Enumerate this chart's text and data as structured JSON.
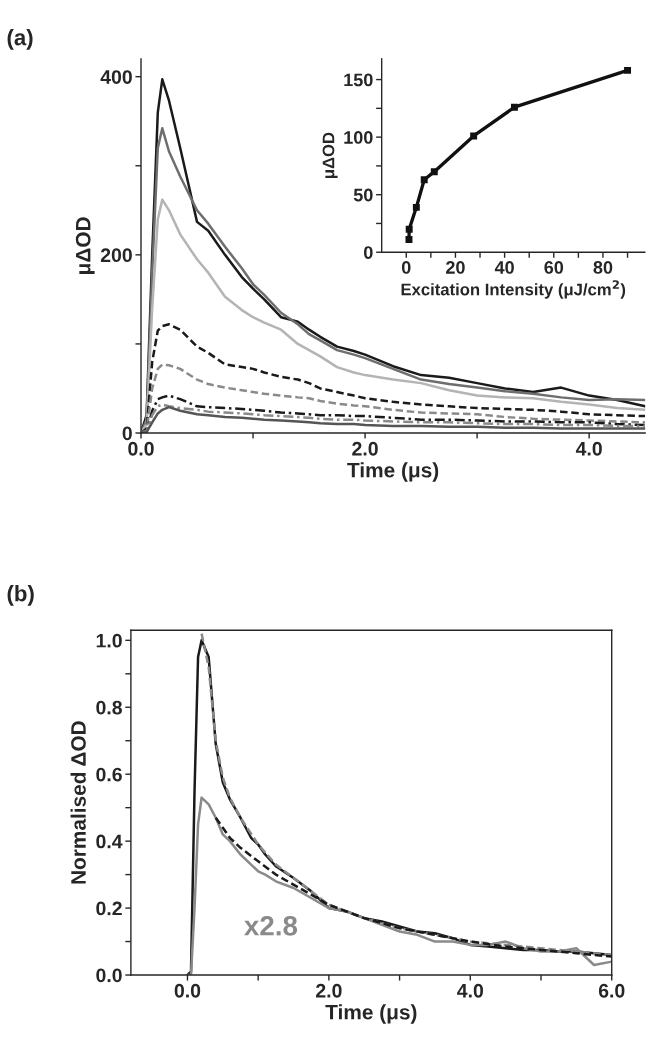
{
  "chart_data": [
    {
      "type": "line",
      "title": "(a)",
      "xlabel": "Time (μs)",
      "ylabel": "μΔOD",
      "x": [
        0,
        0.05,
        0.1,
        0.15,
        0.19,
        0.25,
        0.35,
        0.5,
        0.6,
        0.75,
        0.9,
        1.0,
        1.1,
        1.25,
        1.4,
        1.5,
        1.6,
        1.75,
        1.9,
        2.0,
        2.25,
        2.5,
        2.75,
        3.0,
        3.25,
        3.5,
        3.75,
        4.0,
        4.25,
        4.5
      ],
      "series": [
        {
          "color": "#1a1a1a",
          "line_style": "solid",
          "values": [
            0,
            20,
            200,
            360,
            397,
            373,
            320,
            237,
            227,
            200,
            175,
            162,
            150,
            130,
            125,
            116,
            108,
            97,
            92,
            88,
            75,
            65,
            62,
            56,
            50,
            46,
            51,
            42,
            37,
            30
          ]
        },
        {
          "color": "#6e6e6e",
          "line_style": "solid",
          "values": [
            0,
            15,
            180,
            320,
            342,
            316,
            288,
            250,
            235,
            209,
            185,
            167,
            155,
            135,
            122,
            111,
            104,
            93,
            88,
            84,
            72,
            60,
            55,
            51,
            47,
            44,
            40,
            37,
            38,
            37
          ]
        },
        {
          "color": "#b4b4b4",
          "line_style": "solid",
          "values": [
            0,
            10,
            140,
            240,
            262,
            250,
            223,
            195,
            180,
            153,
            138,
            130,
            124,
            116,
            100,
            93,
            86,
            74,
            68,
            65,
            60,
            56,
            48,
            42,
            40,
            39,
            35,
            32,
            28,
            26
          ]
        },
        {
          "color": "#1a1a1a",
          "line_style": "dashed",
          "values": [
            0,
            5,
            80,
            115,
            120,
            122,
            116,
            97,
            90,
            77,
            74,
            72,
            68,
            63,
            60,
            56,
            50,
            46,
            42,
            39,
            35,
            32,
            30,
            28,
            27,
            26,
            24,
            21,
            20,
            19
          ]
        },
        {
          "color": "#8a8a8a",
          "line_style": "dashed",
          "values": [
            0,
            3,
            50,
            72,
            77,
            76,
            72,
            60,
            55,
            51,
            48,
            46,
            44,
            42,
            40,
            39,
            36,
            33,
            31,
            30,
            26,
            23,
            22,
            21,
            18,
            16,
            15,
            14,
            13,
            12
          ]
        },
        {
          "color": "#1a1a1a",
          "line_style": "dotted",
          "values": [
            0,
            2,
            25,
            38,
            40,
            42,
            38,
            30,
            29,
            28,
            27,
            26,
            25,
            23,
            22,
            21,
            20,
            20,
            19,
            19,
            17,
            15,
            15,
            14,
            13,
            13,
            12,
            12,
            10,
            9
          ]
        },
        {
          "color": "#8a8a8a",
          "line_style": "dotted",
          "values": [
            0,
            2,
            20,
            30,
            32,
            30,
            28,
            26,
            24,
            23,
            22,
            21,
            20,
            19,
            18,
            17,
            16,
            15,
            15,
            14,
            13,
            12,
            12,
            11,
            10,
            10,
            9,
            9,
            8,
            8
          ]
        },
        {
          "color": "#555555",
          "line_style": "solid",
          "values": [
            0,
            1,
            12,
            22,
            26,
            29,
            25,
            21,
            20,
            18,
            17,
            16,
            15,
            14,
            13,
            12,
            11,
            10,
            10,
            9,
            8,
            8,
            7,
            7,
            6,
            6,
            5,
            5,
            5,
            5
          ]
        }
      ],
      "xlim": [
        0,
        4.5
      ],
      "ylim": [
        0,
        420
      ],
      "xticks": [
        {
          "value": 0,
          "label": "0.0"
        },
        {
          "value": 1,
          "label": null
        },
        {
          "value": 2,
          "label": "2.0"
        },
        {
          "value": 3,
          "label": null
        },
        {
          "value": 4,
          "label": "4.0"
        }
      ],
      "yticks": [
        0,
        {
          "value": 100,
          "label": null
        },
        200,
        {
          "value": 300,
          "label": null
        },
        400
      ]
    },
    {
      "type": "line",
      "xlabel": "Excitation Intensity (μJ/cm$^{2}$)",
      "ylabel": "μΔOD",
      "marker": "square",
      "x": [
        1.1,
        1.2,
        4.1,
        7.3,
        11.4,
        27.4,
        44,
        90
      ],
      "series": [
        {
          "color": "#111111",
          "line_style": "solid",
          "values": [
            11,
            20,
            39,
            63,
            70,
            101,
            126,
            158
          ]
        }
      ],
      "xlim": [
        -10,
        97
      ],
      "ylim": [
        0,
        168
      ],
      "xticks": [
        0,
        {
          "value": 10,
          "label": null
        },
        20,
        {
          "value": 30,
          "label": null
        },
        40,
        {
          "value": 50,
          "label": null
        },
        60,
        {
          "value": 70,
          "label": null
        },
        80,
        {
          "value": 90,
          "label": null
        }
      ],
      "yticks": [
        0,
        {
          "value": 25,
          "label": null
        },
        50,
        {
          "value": 75,
          "label": null
        },
        100,
        {
          "value": 125,
          "label": null
        },
        150
      ]
    },
    {
      "type": "line",
      "title": "(b)",
      "xlabel": "Time (μs)",
      "ylabel": "Normalised ΔOD",
      "annotations": [
        "x2.8"
      ],
      "series": [
        {
          "color": "#1a1a1a",
          "line_style": "solid",
          "x": [
            0,
            0.05,
            0.1,
            0.15,
            0.2,
            0.3,
            0.4,
            0.5,
            0.6,
            0.75,
            0.9,
            1.0,
            1.1,
            1.25,
            1.5,
            1.75,
            2.0,
            2.25,
            2.5,
            2.75,
            3.0,
            3.25,
            3.5,
            3.75,
            4.0,
            4.25,
            4.5,
            4.75,
            5.0,
            5.25,
            5.5,
            5.75,
            6.0
          ],
          "values": [
            0,
            0.01,
            0.55,
            0.95,
            1.0,
            0.95,
            0.69,
            0.575,
            0.525,
            0.47,
            0.41,
            0.39,
            0.36,
            0.325,
            0.29,
            0.25,
            0.2,
            0.19,
            0.17,
            0.16,
            0.145,
            0.13,
            0.125,
            0.11,
            0.09,
            0.085,
            0.08,
            0.075,
            0.075,
            0.07,
            0.07,
            0.065,
            0.06
          ]
        },
        {
          "color": "#8a8a8a",
          "line_style": "solid",
          "x": [
            0,
            0.05,
            0.1,
            0.15,
            0.2,
            0.3,
            0.4,
            0.5,
            0.6,
            0.75,
            0.9,
            1.0,
            1.1,
            1.25,
            1.5,
            1.75,
            2.0,
            2.25,
            2.5,
            2.75,
            3.0,
            3.25,
            3.5,
            3.75,
            4.0,
            4.25,
            4.5,
            4.75,
            5.0,
            5.25,
            5.5,
            5.75,
            6.0
          ],
          "values": [
            0,
            0.0,
            0.2,
            0.45,
            0.53,
            0.51,
            0.47,
            0.42,
            0.4,
            0.36,
            0.33,
            0.31,
            0.3,
            0.28,
            0.26,
            0.23,
            0.2,
            0.19,
            0.17,
            0.15,
            0.13,
            0.12,
            0.1,
            0.1,
            0.09,
            0.09,
            0.1,
            0.08,
            0.07,
            0.07,
            0.08,
            0.03,
            0.04
          ]
        },
        {
          "color": "#8a8a8a",
          "line_style": "dashed",
          "x": [
            0.2,
            0.3,
            0.4,
            0.5,
            0.6,
            0.75,
            1.0,
            1.25,
            1.5,
            2.0,
            2.5,
            3.0,
            3.5,
            4.0,
            4.5,
            5.0,
            5.5,
            6.0
          ],
          "values": [
            1.02,
            0.92,
            0.7,
            0.59,
            0.53,
            0.47,
            0.39,
            0.33,
            0.29,
            0.21,
            0.17,
            0.14,
            0.12,
            0.1,
            0.09,
            0.08,
            0.07,
            0.06
          ]
        },
        {
          "color": "#1a1a1a",
          "line_style": "dashed",
          "x": [
            0.4,
            0.5,
            0.6,
            0.75,
            1.0,
            1.25,
            1.5,
            2.0,
            2.5,
            3.0,
            3.5,
            4.0,
            4.5,
            5.0,
            5.5,
            6.0
          ],
          "values": [
            0.47,
            0.44,
            0.41,
            0.38,
            0.34,
            0.3,
            0.27,
            0.21,
            0.17,
            0.14,
            0.12,
            0.1,
            0.085,
            0.075,
            0.065,
            0.055
          ]
        }
      ],
      "xlim": [
        -0.8,
        6.0
      ],
      "ylim": [
        0,
        1.03
      ],
      "xticks": [
        {
          "value": 0,
          "label": "0.0"
        },
        {
          "value": 1,
          "label": null
        },
        {
          "value": 2,
          "label": "2.0"
        },
        {
          "value": 3,
          "label": null
        },
        {
          "value": 4,
          "label": "4.0"
        },
        {
          "value": 5,
          "label": null
        },
        {
          "value": 6,
          "label": "6.0"
        }
      ],
      "yticks": [
        {
          "value": 0,
          "label": "0.0"
        },
        {
          "value": 0.1,
          "label": null
        },
        {
          "value": 0.2,
          "label": "0.2"
        },
        {
          "value": 0.3,
          "label": null
        },
        {
          "value": 0.4,
          "label": "0.4"
        },
        {
          "value": 0.5,
          "label": null
        },
        {
          "value": 0.6,
          "label": "0.6"
        },
        {
          "value": 0.7,
          "label": null
        },
        {
          "value": 0.8,
          "label": "0.8"
        },
        {
          "value": 0.9,
          "label": null
        },
        {
          "value": 1.0,
          "label": "1.0"
        }
      ]
    }
  ]
}
